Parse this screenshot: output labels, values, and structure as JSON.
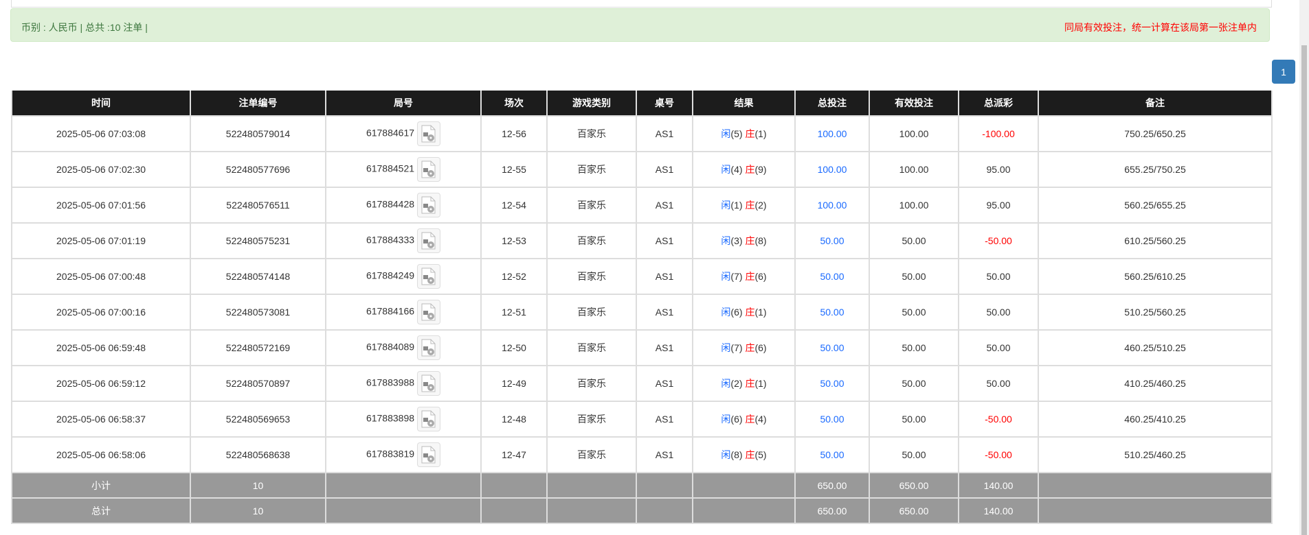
{
  "summary": {
    "left": "币别 : 人民币 | 总共 :10 注单 |",
    "notice": "同局有效投注，统一计算在该局第一张注单内"
  },
  "pagination": {
    "current": "1"
  },
  "table": {
    "headers": [
      "时间",
      "注单编号",
      "局号",
      "场次",
      "游戏类别",
      "桌号",
      "结果",
      "总投注",
      "有效投注",
      "总派彩",
      "备注"
    ],
    "rows": [
      {
        "time": "2025-05-06 07:03:08",
        "bet_id": "522480579014",
        "round": "617884617",
        "shoe": "12-56",
        "game": "百家乐",
        "table": "AS1",
        "player": "闲",
        "player_pts": "(5)",
        "banker": "庄",
        "banker_pts": "(1)",
        "total_bet": "100.00",
        "valid_bet": "100.00",
        "payout": "-100.00",
        "note": "750.25/650.25"
      },
      {
        "time": "2025-05-06 07:02:30",
        "bet_id": "522480577696",
        "round": "617884521",
        "shoe": "12-55",
        "game": "百家乐",
        "table": "AS1",
        "player": "闲",
        "player_pts": "(4)",
        "banker": "庄",
        "banker_pts": "(9)",
        "total_bet": "100.00",
        "valid_bet": "100.00",
        "payout": "95.00",
        "note": "655.25/750.25"
      },
      {
        "time": "2025-05-06 07:01:56",
        "bet_id": "522480576511",
        "round": "617884428",
        "shoe": "12-54",
        "game": "百家乐",
        "table": "AS1",
        "player": "闲",
        "player_pts": "(1)",
        "banker": "庄",
        "banker_pts": "(2)",
        "total_bet": "100.00",
        "valid_bet": "100.00",
        "payout": "95.00",
        "note": "560.25/655.25"
      },
      {
        "time": "2025-05-06 07:01:19",
        "bet_id": "522480575231",
        "round": "617884333",
        "shoe": "12-53",
        "game": "百家乐",
        "table": "AS1",
        "player": "闲",
        "player_pts": "(3)",
        "banker": "庄",
        "banker_pts": "(8)",
        "total_bet": "50.00",
        "valid_bet": "50.00",
        "payout": "-50.00",
        "note": "610.25/560.25"
      },
      {
        "time": "2025-05-06 07:00:48",
        "bet_id": "522480574148",
        "round": "617884249",
        "shoe": "12-52",
        "game": "百家乐",
        "table": "AS1",
        "player": "闲",
        "player_pts": "(7)",
        "banker": "庄",
        "banker_pts": "(6)",
        "total_bet": "50.00",
        "valid_bet": "50.00",
        "payout": "50.00",
        "note": "560.25/610.25"
      },
      {
        "time": "2025-05-06 07:00:16",
        "bet_id": "522480573081",
        "round": "617884166",
        "shoe": "12-51",
        "game": "百家乐",
        "table": "AS1",
        "player": "闲",
        "player_pts": "(6)",
        "banker": "庄",
        "banker_pts": "(1)",
        "total_bet": "50.00",
        "valid_bet": "50.00",
        "payout": "50.00",
        "note": "510.25/560.25"
      },
      {
        "time": "2025-05-06 06:59:48",
        "bet_id": "522480572169",
        "round": "617884089",
        "shoe": "12-50",
        "game": "百家乐",
        "table": "AS1",
        "player": "闲",
        "player_pts": "(7)",
        "banker": "庄",
        "banker_pts": "(6)",
        "total_bet": "50.00",
        "valid_bet": "50.00",
        "payout": "50.00",
        "note": "460.25/510.25"
      },
      {
        "time": "2025-05-06 06:59:12",
        "bet_id": "522480570897",
        "round": "617883988",
        "shoe": "12-49",
        "game": "百家乐",
        "table": "AS1",
        "player": "闲",
        "player_pts": "(2)",
        "banker": "庄",
        "banker_pts": "(1)",
        "total_bet": "50.00",
        "valid_bet": "50.00",
        "payout": "50.00",
        "note": "410.25/460.25"
      },
      {
        "time": "2025-05-06 06:58:37",
        "bet_id": "522480569653",
        "round": "617883898",
        "shoe": "12-48",
        "game": "百家乐",
        "table": "AS1",
        "player": "闲",
        "player_pts": "(6)",
        "banker": "庄",
        "banker_pts": "(4)",
        "total_bet": "50.00",
        "valid_bet": "50.00",
        "payout": "-50.00",
        "note": "460.25/410.25"
      },
      {
        "time": "2025-05-06 06:58:06",
        "bet_id": "522480568638",
        "round": "617883819",
        "shoe": "12-47",
        "game": "百家乐",
        "table": "AS1",
        "player": "闲",
        "player_pts": "(8)",
        "banker": "庄",
        "banker_pts": "(5)",
        "total_bet": "50.00",
        "valid_bet": "50.00",
        "payout": "-50.00",
        "note": "510.25/460.25"
      }
    ],
    "subtotal": {
      "label": "小计",
      "count": "10",
      "total_bet": "650.00",
      "valid_bet": "650.00",
      "payout": "140.00"
    },
    "total": {
      "label": "总计",
      "count": "10",
      "total_bet": "650.00",
      "valid_bet": "650.00",
      "payout": "140.00"
    }
  },
  "colors": {
    "player": "#1a6aff",
    "banker": "#ff0000",
    "negative": "#ff0000",
    "header_bg": "#1c1c1c",
    "summary_row_bg": "#999999",
    "alert_bg": "#dff0d8"
  },
  "icons": {
    "replay": "video-file-icon"
  }
}
